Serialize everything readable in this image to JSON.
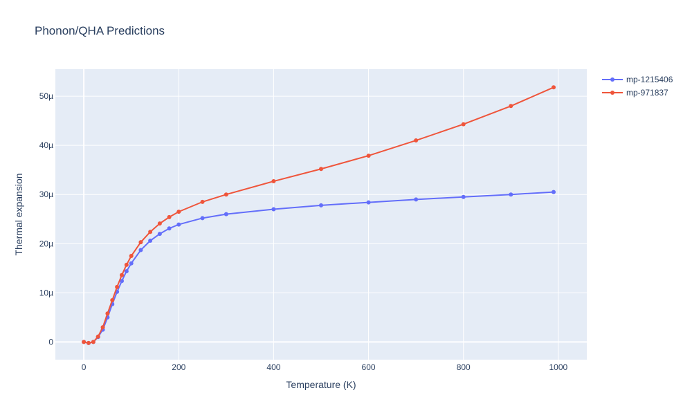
{
  "chart_data": {
    "type": "line",
    "title": "Phonon/QHA Predictions",
    "xlabel": "Temperature (K)",
    "ylabel": "Thermal expansion",
    "xlim": [
      -60,
      1060
    ],
    "ylim": [
      -3.6e-06,
      5.55e-05
    ],
    "x_ticks": [
      0,
      200,
      400,
      600,
      800,
      1000
    ],
    "x_tick_labels": [
      "0",
      "200",
      "400",
      "600",
      "800",
      "1000"
    ],
    "y_ticks": [
      0,
      1e-05,
      2e-05,
      3e-05,
      4e-05,
      5e-05
    ],
    "y_tick_labels": [
      "0",
      "10µ",
      "20µ",
      "30µ",
      "40µ",
      "50µ"
    ],
    "grid": true,
    "legend_position": "top-right",
    "marker": "circle",
    "series": [
      {
        "name": "mp-1215406",
        "color": "#636efa",
        "points": [
          [
            0,
            0
          ],
          [
            10,
            -0.2
          ],
          [
            20,
            0.0
          ],
          [
            30,
            1.0
          ],
          [
            40,
            2.5
          ],
          [
            50,
            5.0
          ],
          [
            60,
            7.7
          ],
          [
            70,
            10.2
          ],
          [
            80,
            12.4
          ],
          [
            90,
            14.4
          ],
          [
            100,
            16.0
          ],
          [
            120,
            18.7
          ],
          [
            140,
            20.6
          ],
          [
            160,
            22.0
          ],
          [
            180,
            23.1
          ],
          [
            200,
            23.9
          ],
          [
            250,
            25.2
          ],
          [
            300,
            26.0
          ],
          [
            400,
            27.0
          ],
          [
            500,
            27.8
          ],
          [
            600,
            28.4
          ],
          [
            700,
            29.0
          ],
          [
            800,
            29.5
          ],
          [
            900,
            30.0
          ],
          [
            990,
            30.5
          ]
        ]
      },
      {
        "name": "mp-971837",
        "color": "#ef553b",
        "points": [
          [
            0,
            0
          ],
          [
            10,
            -0.2
          ],
          [
            20,
            0.0
          ],
          [
            30,
            1.1
          ],
          [
            40,
            3.0
          ],
          [
            50,
            5.8
          ],
          [
            60,
            8.5
          ],
          [
            70,
            11.2
          ],
          [
            80,
            13.6
          ],
          [
            90,
            15.7
          ],
          [
            100,
            17.5
          ],
          [
            120,
            20.3
          ],
          [
            140,
            22.4
          ],
          [
            160,
            24.1
          ],
          [
            180,
            25.4
          ],
          [
            200,
            26.5
          ],
          [
            250,
            28.5
          ],
          [
            300,
            30.0
          ],
          [
            400,
            32.7
          ],
          [
            500,
            35.2
          ],
          [
            600,
            37.9
          ],
          [
            700,
            41.0
          ],
          [
            800,
            44.3
          ],
          [
            900,
            48.0
          ],
          [
            990,
            51.8
          ]
        ]
      }
    ]
  }
}
